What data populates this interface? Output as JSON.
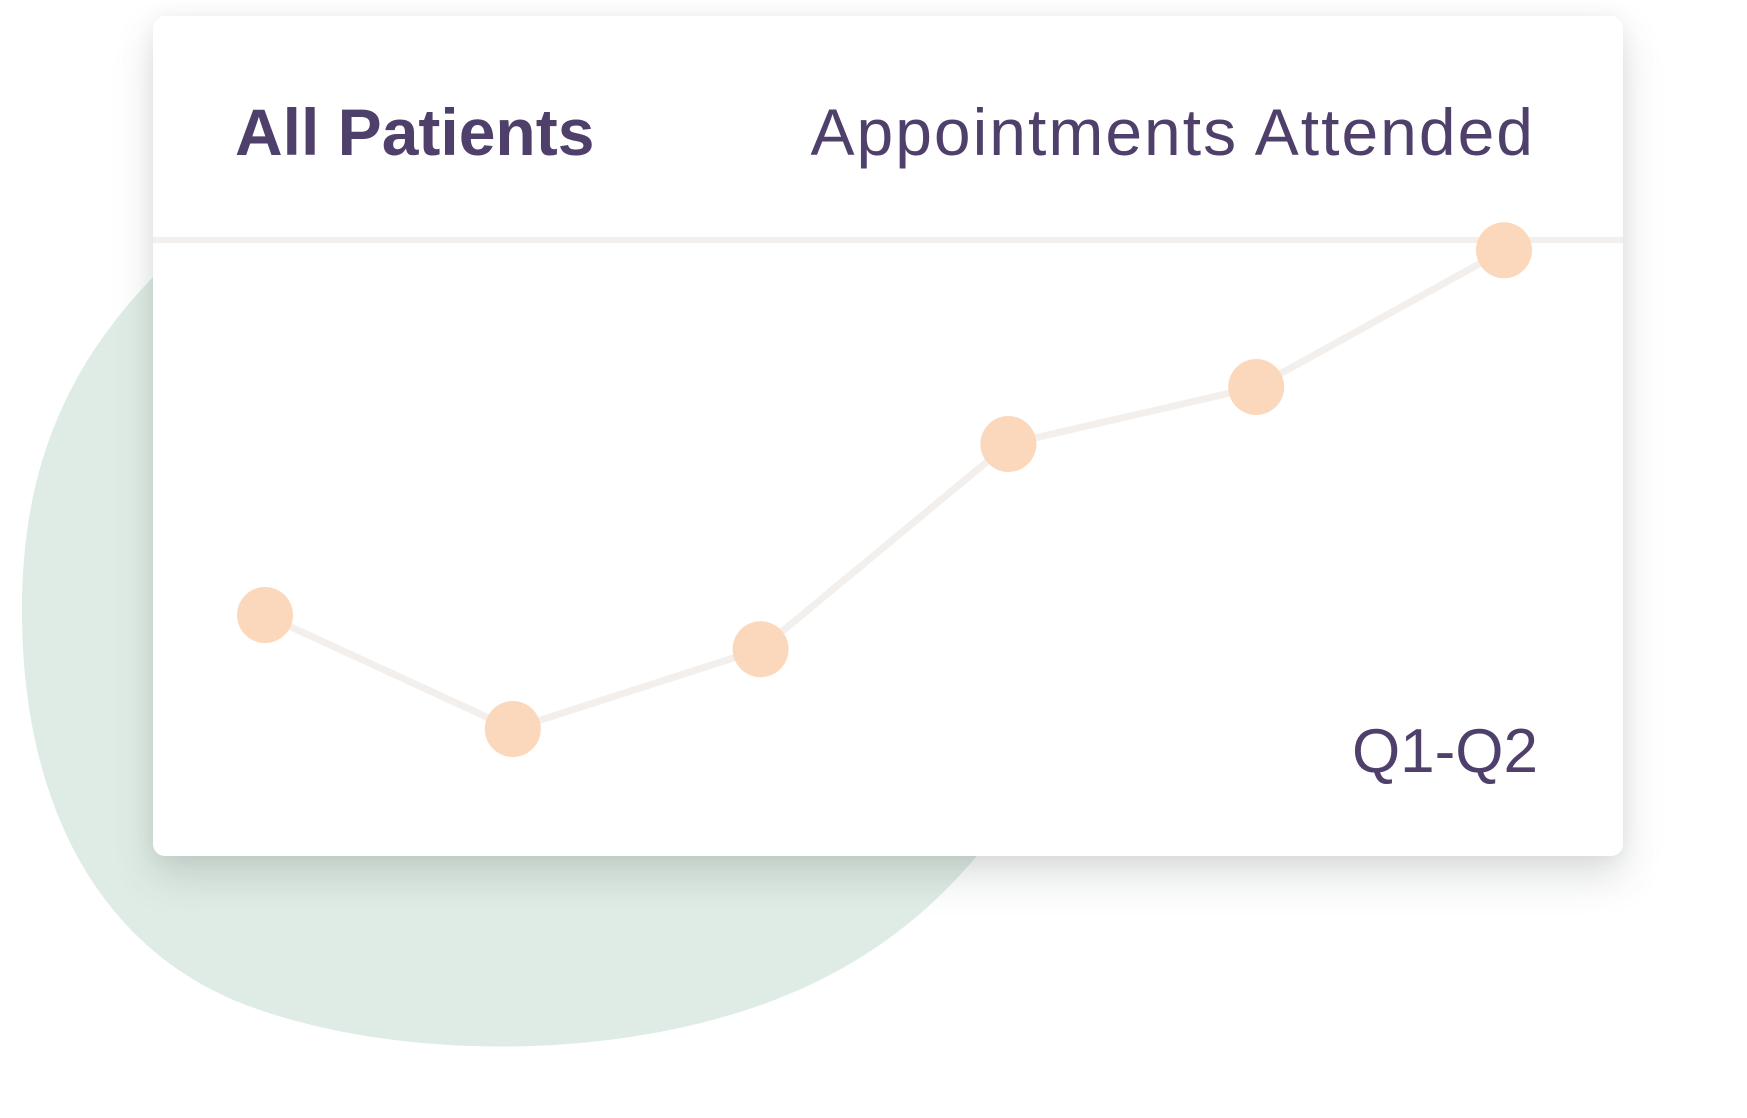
{
  "card": {
    "title": "All Patients",
    "metric": "Appointments Attended",
    "period": "Q1-Q2"
  },
  "colors": {
    "text": "#4f3f6b",
    "point": "#fbd8bb",
    "line": "#f3efec",
    "blob": "#dfece5",
    "divider": "#f3efec"
  },
  "chart_data": {
    "type": "line",
    "x": [
      1,
      2,
      3,
      4,
      5,
      6
    ],
    "values": [
      40,
      30,
      37,
      55,
      60,
      72
    ],
    "ylim": [
      0,
      100
    ],
    "grid": false,
    "title": "",
    "xlabel": "",
    "ylabel": ""
  }
}
